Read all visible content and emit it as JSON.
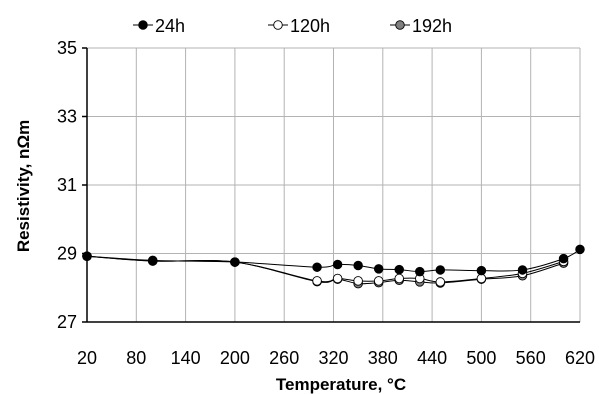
{
  "chart_data": {
    "type": "line",
    "title": "",
    "xlabel": "Temperature, °C",
    "ylabel": "Resistivity, nΩm",
    "xlim": [
      20,
      620
    ],
    "ylim": [
      27,
      35
    ],
    "x_ticks": [
      20,
      80,
      140,
      200,
      260,
      320,
      380,
      440,
      500,
      560,
      620
    ],
    "y_ticks": [
      27,
      29,
      31,
      33,
      35
    ],
    "grid": true,
    "legend_position": "top",
    "series": [
      {
        "name": "24h",
        "marker_fill": "#000000",
        "points": [
          [
            20,
            28.92
          ],
          [
            100,
            28.8
          ],
          [
            200,
            28.75
          ],
          [
            300,
            28.6
          ],
          [
            325,
            28.68
          ],
          [
            350,
            28.65
          ],
          [
            375,
            28.55
          ],
          [
            400,
            28.53
          ],
          [
            425,
            28.47
          ],
          [
            450,
            28.52
          ],
          [
            500,
            28.5
          ],
          [
            550,
            28.52
          ],
          [
            600,
            28.85
          ],
          [
            620,
            29.12
          ]
        ]
      },
      {
        "name": "120h",
        "marker_fill": "#ffffff",
        "points": [
          [
            20,
            28.92
          ],
          [
            100,
            28.78
          ],
          [
            200,
            28.75
          ],
          [
            300,
            28.2
          ],
          [
            325,
            28.27
          ],
          [
            350,
            28.2
          ],
          [
            375,
            28.2
          ],
          [
            400,
            28.27
          ],
          [
            425,
            28.27
          ],
          [
            450,
            28.17
          ],
          [
            500,
            28.27
          ],
          [
            550,
            28.42
          ],
          [
            600,
            28.77
          ]
        ]
      },
      {
        "name": "192h",
        "marker_fill": "#808080",
        "points": [
          [
            20,
            28.92
          ],
          [
            100,
            28.78
          ],
          [
            200,
            28.75
          ],
          [
            300,
            28.18
          ],
          [
            325,
            28.25
          ],
          [
            350,
            28.12
          ],
          [
            375,
            28.15
          ],
          [
            400,
            28.22
          ],
          [
            425,
            28.17
          ],
          [
            450,
            28.14
          ],
          [
            500,
            28.25
          ],
          [
            550,
            28.35
          ],
          [
            600,
            28.72
          ]
        ]
      }
    ]
  }
}
